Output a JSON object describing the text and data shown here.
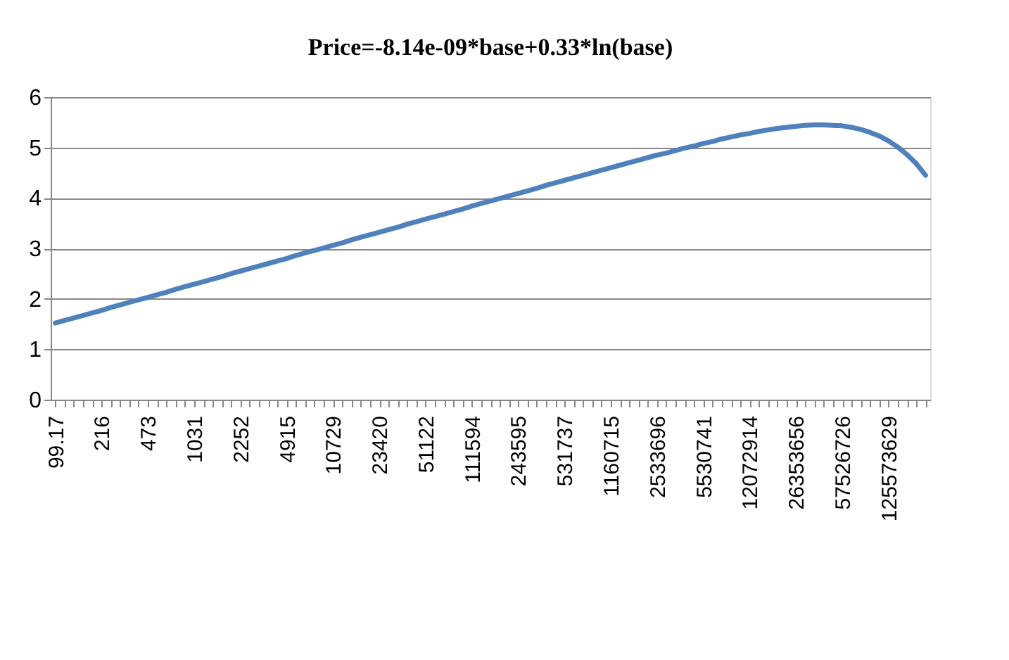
{
  "chart_data": {
    "type": "line",
    "title": "Price=-8.14e-09*base+0.33*ln(base)",
    "categories": [
      "99.17",
      null,
      null,
      null,
      null,
      "216",
      null,
      null,
      null,
      null,
      "473",
      null,
      null,
      null,
      null,
      "1031",
      null,
      null,
      null,
      null,
      "2252",
      null,
      null,
      null,
      null,
      "4915",
      null,
      null,
      null,
      null,
      "10729",
      null,
      null,
      null,
      null,
      "23420",
      null,
      null,
      null,
      null,
      "51122",
      null,
      null,
      null,
      null,
      "111594",
      null,
      null,
      null,
      null,
      "243595",
      null,
      null,
      null,
      null,
      "531737",
      null,
      null,
      null,
      null,
      "1160715",
      null,
      null,
      null,
      null,
      "2533696",
      null,
      null,
      null,
      null,
      "5530741",
      null,
      null,
      null,
      null,
      "12072914",
      null,
      null,
      null,
      null,
      "26353656",
      null,
      null,
      null,
      null,
      "57526726",
      null,
      null,
      null,
      null,
      "125573629",
      null,
      null,
      null,
      null
    ],
    "series": [
      {
        "color": "#4f81bd",
        "values": [
          1.52,
          1.57,
          1.62,
          1.67,
          1.72,
          1.77,
          1.83,
          1.88,
          1.93,
          1.98,
          2.03,
          2.08,
          2.13,
          2.19,
          2.24,
          2.29,
          2.34,
          2.39,
          2.44,
          2.5,
          2.55,
          2.6,
          2.65,
          2.7,
          2.75,
          2.8,
          2.86,
          2.91,
          2.96,
          3.01,
          3.06,
          3.11,
          3.17,
          3.22,
          3.27,
          3.32,
          3.37,
          3.42,
          3.48,
          3.53,
          3.58,
          3.63,
          3.68,
          3.73,
          3.78,
          3.84,
          3.89,
          3.94,
          3.99,
          4.04,
          4.09,
          4.14,
          4.19,
          4.25,
          4.3,
          4.35,
          4.4,
          4.45,
          4.5,
          4.55,
          4.6,
          4.65,
          4.7,
          4.75,
          4.8,
          4.85,
          4.89,
          4.94,
          4.99,
          5.03,
          5.08,
          5.12,
          5.17,
          5.21,
          5.25,
          5.28,
          5.32,
          5.35,
          5.38,
          5.4,
          5.42,
          5.44,
          5.45,
          5.45,
          5.44,
          5.43,
          5.4,
          5.36,
          5.3,
          5.23,
          5.13,
          5.01,
          4.86,
          4.68,
          4.45
        ]
      }
    ],
    "ylim": [
      0,
      6
    ],
    "yticks": [
      0,
      1,
      2,
      3,
      4,
      5,
      6
    ],
    "grid": "y",
    "marker": "none",
    "line_style": "solid"
  }
}
